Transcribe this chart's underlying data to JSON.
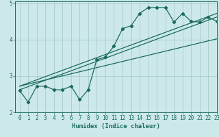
{
  "title": "",
  "xlabel": "Humidex (Indice chaleur)",
  "ylabel": "",
  "bg_color": "#cce8e8",
  "grid_color": "#aacccc",
  "line_color": "#1a6b5a",
  "xlim": [
    -0.5,
    23
  ],
  "ylim": [
    2,
    5.05
  ],
  "yticks": [
    2,
    3,
    4,
    5
  ],
  "xticks": [
    0,
    1,
    2,
    3,
    4,
    5,
    6,
    7,
    8,
    9,
    10,
    11,
    12,
    13,
    14,
    15,
    16,
    17,
    18,
    19,
    20,
    21,
    22,
    23
  ],
  "curve_x": [
    0,
    1,
    2,
    3,
    4,
    5,
    6,
    7,
    8,
    9,
    10,
    11,
    12,
    13,
    14,
    15,
    16,
    17,
    18,
    19,
    20,
    21,
    22,
    23
  ],
  "curve_y": [
    2.6,
    2.28,
    2.72,
    2.72,
    2.62,
    2.62,
    2.72,
    2.35,
    2.62,
    3.45,
    3.52,
    3.82,
    4.3,
    4.38,
    4.72,
    4.88,
    4.88,
    4.88,
    4.48,
    4.72,
    4.5,
    4.48,
    4.62,
    4.5
  ],
  "line1_x": [
    0,
    23
  ],
  "line1_y": [
    2.62,
    4.62
  ],
  "line2_x": [
    0,
    23
  ],
  "line2_y": [
    2.72,
    4.72
  ],
  "line3_x": [
    0,
    23
  ],
  "line3_y": [
    2.72,
    4.02
  ]
}
